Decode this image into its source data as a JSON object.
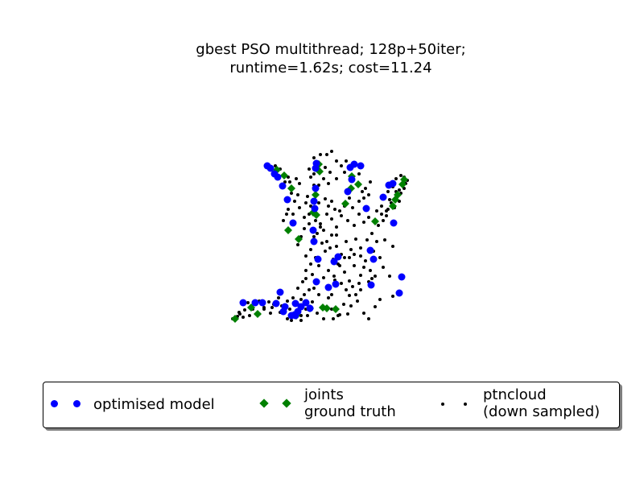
{
  "chart_data": {
    "type": "scatter",
    "title": "gbest PSO multithread; 128p+50iter;\nruntime=1.62s; cost=11.24",
    "xlabel": "",
    "ylabel": "",
    "axes_visible": false,
    "grid": false,
    "legend_position": "bottom-center",
    "xlim": [
      0,
      300
    ],
    "ylim": [
      0,
      260
    ],
    "series": [
      {
        "name": "optimised model",
        "marker": "circle",
        "color": "#0000ff",
        "points": [
          [
            90,
            217
          ],
          [
            100,
            222
          ],
          [
            104,
            221
          ],
          [
            105,
            222
          ],
          [
            108,
            217
          ],
          [
            123,
            213
          ],
          [
            118,
            206
          ],
          [
            112,
            211
          ],
          [
            92,
            211
          ],
          [
            105,
            207
          ],
          [
            40,
            206
          ],
          [
            55,
            206
          ],
          [
            64,
            206
          ],
          [
            81,
            207
          ],
          [
            86,
            193
          ],
          [
            131,
            180
          ],
          [
            146,
            187
          ],
          [
            155,
            183
          ],
          [
            153,
            155
          ],
          [
            133,
            152
          ],
          [
            158,
            149
          ],
          [
            198,
            141
          ],
          [
            202,
            152
          ],
          [
            199,
            184
          ],
          [
            234,
            194
          ],
          [
            237,
            174
          ],
          [
            128,
            130
          ],
          [
            127,
            116
          ],
          [
            129,
            89
          ],
          [
            128,
            80
          ],
          [
            130,
            64
          ],
          [
            130,
            39
          ],
          [
            131,
            33
          ],
          [
            102,
            107
          ],
          [
            95,
            78
          ],
          [
            89,
            61
          ],
          [
            83,
            50
          ],
          [
            79,
            46
          ],
          [
            74,
            39
          ],
          [
            70,
            36
          ],
          [
            170,
            68
          ],
          [
            175,
            53
          ],
          [
            173,
            38
          ],
          [
            178,
            34
          ],
          [
            186,
            36
          ],
          [
            193,
            89
          ],
          [
            227,
            107
          ],
          [
            214,
            75
          ],
          [
            221,
            60
          ],
          [
            226,
            58
          ]
        ]
      },
      {
        "name": "joints\nground truth",
        "marker": "diamond",
        "color": "#008000",
        "points": [
          [
            106,
            222
          ],
          [
            139,
            212
          ],
          [
            144,
            213
          ],
          [
            155,
            214
          ],
          [
            123,
            213
          ],
          [
            30,
            226
          ],
          [
            50,
            212
          ],
          [
            58,
            220
          ],
          [
            96,
            116
          ],
          [
            127,
            94
          ],
          [
            100,
            64
          ],
          [
            91,
            48
          ],
          [
            82,
            41
          ],
          [
            130,
            72
          ],
          [
            132,
            40
          ],
          [
            135,
            43
          ],
          [
            134,
            34
          ],
          [
            167,
            83
          ],
          [
            174,
            64
          ],
          [
            183,
            59
          ],
          [
            175,
            49
          ],
          [
            204,
            105
          ],
          [
            226,
            86
          ],
          [
            229,
            78
          ],
          [
            232,
            72
          ],
          [
            238,
            59
          ],
          [
            240,
            53
          ],
          [
            131,
            97
          ],
          [
            109,
            127
          ]
        ]
      },
      {
        "name": "ptncloud\n(down sampled)",
        "marker": "point",
        "color": "#000000",
        "points": [
          [
            27,
            226
          ],
          [
            33,
            223
          ],
          [
            35,
            218
          ],
          [
            36,
            220
          ],
          [
            40,
            224
          ],
          [
            48,
            222
          ],
          [
            52,
            214
          ],
          [
            60,
            220
          ],
          [
            66,
            214
          ],
          [
            74,
            219
          ],
          [
            78,
            208
          ],
          [
            84,
            200
          ],
          [
            88,
            210
          ],
          [
            95,
            204
          ],
          [
            98,
            214
          ],
          [
            112,
            222
          ],
          [
            118,
            214
          ],
          [
            126,
            205
          ],
          [
            132,
            219
          ],
          [
            140,
            226
          ],
          [
            150,
            214
          ],
          [
            160,
            221
          ],
          [
            165,
            208
          ],
          [
            172,
            197
          ],
          [
            182,
            204
          ],
          [
            190,
            219
          ],
          [
            196,
            226
          ],
          [
            204,
            211
          ],
          [
            210,
            202
          ],
          [
            226,
            198
          ],
          [
            60,
            204
          ],
          [
            66,
            212
          ],
          [
            72,
            205
          ],
          [
            76,
            212
          ],
          [
            42,
            215
          ],
          [
            46,
            206
          ],
          [
            86,
            218
          ],
          [
            95,
            226
          ],
          [
            102,
            200
          ],
          [
            108,
            188
          ],
          [
            114,
            180
          ],
          [
            118,
            166
          ],
          [
            126,
            171
          ],
          [
            134,
            160
          ],
          [
            140,
            175
          ],
          [
            146,
            166
          ],
          [
            153,
            173
          ],
          [
            160,
            160
          ],
          [
            166,
            168
          ],
          [
            172,
            179
          ],
          [
            178,
            160
          ],
          [
            186,
            172
          ],
          [
            192,
            154
          ],
          [
            198,
            166
          ],
          [
            204,
            173
          ],
          [
            210,
            150
          ],
          [
            214,
            162
          ],
          [
            222,
            173
          ],
          [
            118,
            148
          ],
          [
            124,
            140
          ],
          [
            130,
            150
          ],
          [
            138,
            132
          ],
          [
            142,
            142
          ],
          [
            148,
            138
          ],
          [
            156,
            136
          ],
          [
            162,
            146
          ],
          [
            168,
            130
          ],
          [
            174,
            140
          ],
          [
            180,
            127
          ],
          [
            186,
            138
          ],
          [
            194,
            128
          ],
          [
            200,
            120
          ],
          [
            108,
            134
          ],
          [
            112,
            124
          ],
          [
            116,
            114
          ],
          [
            122,
            108
          ],
          [
            130,
            104
          ],
          [
            136,
            108
          ],
          [
            144,
            96
          ],
          [
            150,
            102
          ],
          [
            156,
            112
          ],
          [
            162,
            98
          ],
          [
            170,
            104
          ],
          [
            178,
            110
          ],
          [
            184,
            96
          ],
          [
            190,
            106
          ],
          [
            196,
            100
          ],
          [
            208,
            110
          ],
          [
            212,
            96
          ],
          [
            110,
            88
          ],
          [
            116,
            100
          ],
          [
            118,
            82
          ],
          [
            124,
            86
          ],
          [
            134,
            82
          ],
          [
            142,
            77
          ],
          [
            146,
            86
          ],
          [
            150,
            80
          ],
          [
            154,
            90
          ],
          [
            160,
            92
          ],
          [
            166,
            86
          ],
          [
            172,
            76
          ],
          [
            176,
            88
          ],
          [
            184,
            80
          ],
          [
            190,
            76
          ],
          [
            192,
            64
          ],
          [
            196,
            72
          ],
          [
            198,
            56
          ],
          [
            184,
            46
          ],
          [
            188,
            68
          ],
          [
            166,
            44
          ],
          [
            162,
            36
          ],
          [
            168,
            30
          ],
          [
            156,
            52
          ],
          [
            148,
            44
          ],
          [
            142,
            38
          ],
          [
            120,
            74
          ],
          [
            128,
            60
          ],
          [
            124,
            50
          ],
          [
            128,
            46
          ],
          [
            122,
            40
          ],
          [
            128,
            26
          ],
          [
            136,
            22
          ],
          [
            144,
            22
          ],
          [
            150,
            18
          ],
          [
            156,
            30
          ],
          [
            146,
            58
          ],
          [
            140,
            52
          ],
          [
            134,
            60
          ],
          [
            104,
            80
          ],
          [
            108,
            72
          ],
          [
            100,
            70
          ],
          [
            96,
            90
          ],
          [
            102,
            96
          ],
          [
            94,
            96
          ],
          [
            90,
            104
          ],
          [
            106,
            52
          ],
          [
            110,
            58
          ],
          [
            98,
            56
          ],
          [
            92,
            56
          ],
          [
            84,
            48
          ],
          [
            80,
            36
          ],
          [
            86,
            40
          ],
          [
            90,
            48
          ],
          [
            96,
            50
          ],
          [
            214,
            104
          ],
          [
            218,
            98
          ],
          [
            220,
            90
          ],
          [
            228,
            88
          ],
          [
            224,
            82
          ],
          [
            222,
            78
          ],
          [
            230,
            68
          ],
          [
            234,
            66
          ],
          [
            236,
            70
          ],
          [
            240,
            64
          ],
          [
            242,
            58
          ],
          [
            244,
            54
          ],
          [
            240,
            50
          ],
          [
            236,
            48
          ],
          [
            230,
            52
          ],
          [
            226,
            62
          ],
          [
            234,
            80
          ],
          [
            220,
            68
          ],
          [
            218,
            92
          ],
          [
            212,
            86
          ],
          [
            206,
            92
          ],
          [
            144,
            130
          ],
          [
            150,
            122
          ],
          [
            156,
            122
          ],
          [
            186,
            148
          ],
          [
            202,
            142
          ],
          [
            206,
            130
          ],
          [
            216,
            128
          ],
          [
            226,
            136
          ],
          [
            180,
            196
          ],
          [
            186,
            190
          ],
          [
            150,
            196
          ],
          [
            146,
            200
          ],
          [
            116,
            196
          ],
          [
            112,
            202
          ],
          [
            108,
            208
          ],
          [
            134,
            196
          ],
          [
            128,
            188
          ],
          [
            122,
            190
          ],
          [
            100,
            228
          ],
          [
            112,
            228
          ],
          [
            120,
            222
          ],
          [
            152,
            226
          ],
          [
            158,
            222
          ],
          [
            170,
            220
          ],
          [
            174,
            210
          ],
          [
            136,
            112
          ],
          [
            132,
            120
          ],
          [
            128,
            124
          ],
          [
            122,
            96
          ],
          [
            140,
            116
          ],
          [
            152,
            152
          ],
          [
            158,
            158
          ],
          [
            166,
            150
          ],
          [
            172,
            150
          ],
          [
            178,
            146
          ],
          [
            190,
            162
          ],
          [
            196,
            180
          ],
          [
            200,
            176
          ],
          [
            184,
            182
          ],
          [
            176,
            186
          ],
          [
            154,
            178
          ],
          [
            162,
            182
          ],
          [
            168,
            190
          ],
          [
            124,
            158
          ],
          [
            118,
            176
          ]
        ]
      }
    ],
    "legend": [
      {
        "label": "optimised model",
        "marker": "circle",
        "color": "#0000ff"
      },
      {
        "label": "joints\nground truth",
        "marker": "diamond",
        "color": "#008000"
      },
      {
        "label": "ptncloud\n(down sampled)",
        "marker": "point",
        "color": "#000000"
      }
    ]
  }
}
